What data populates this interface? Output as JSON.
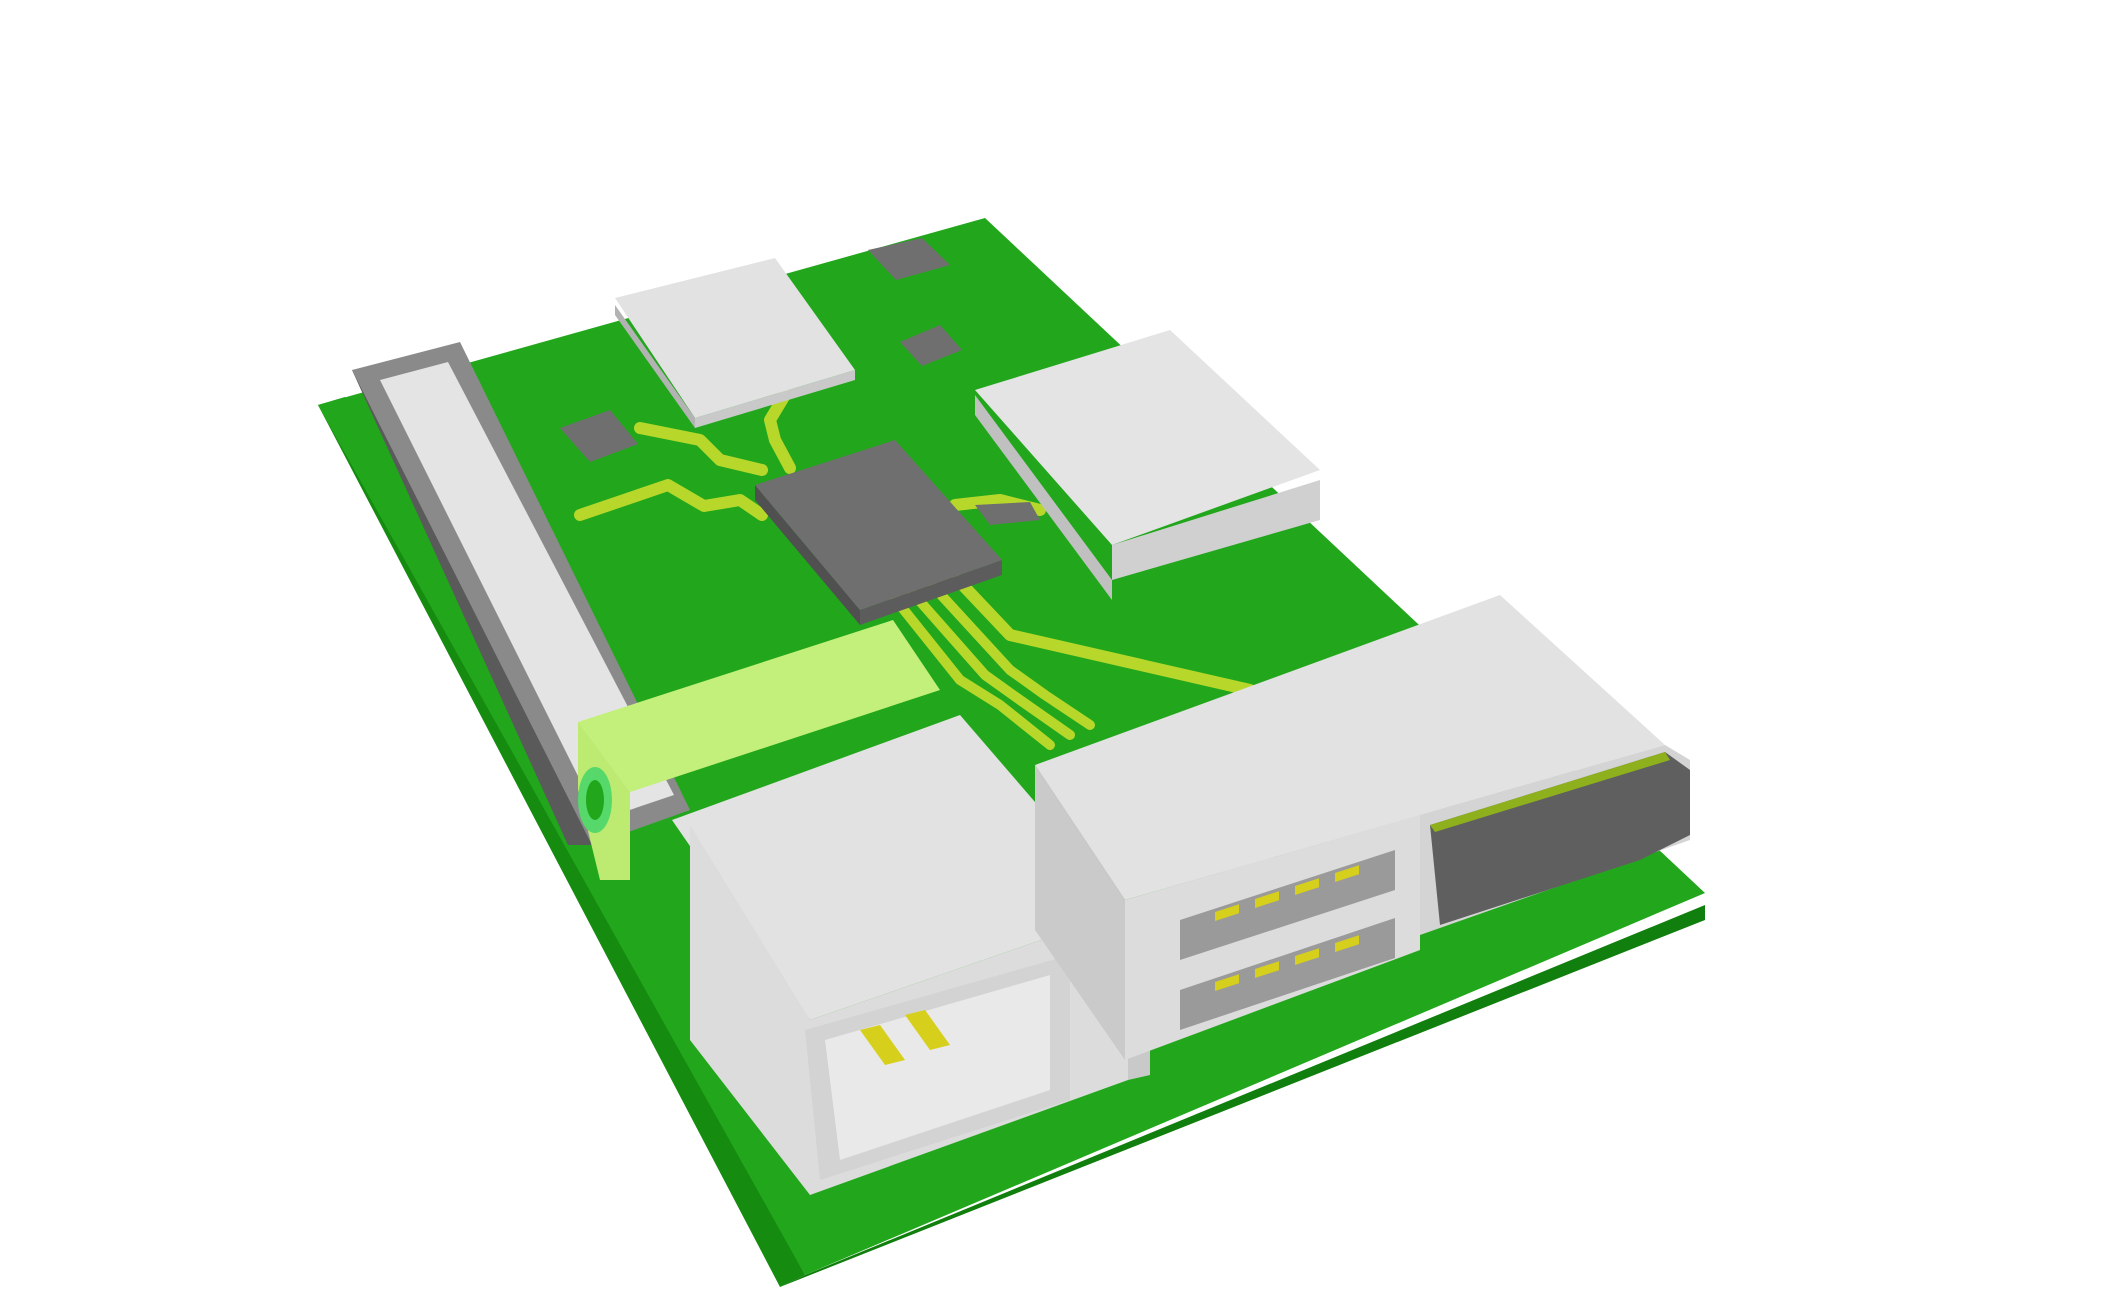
{
  "scene": {
    "subject": "circuit-board-render",
    "colors": {
      "background": "#ffffff",
      "board_top": "#22a71c",
      "board_side": "#158b10",
      "trace": "#b7d82b",
      "trace_dark": "#8fb01d",
      "chip_top": "#6f6f6f",
      "chip_side": "#505050",
      "component_light": "#e2e2e2",
      "component_light_side": "#c9c9c9",
      "component_shadow": "#b3b3b3",
      "highlight_green": "#c3f07a",
      "pin_gold": "#d6cf1c"
    },
    "components": [
      {
        "name": "main-processor-chip",
        "kind": "chip"
      },
      {
        "name": "memory-module",
        "kind": "module"
      },
      {
        "name": "power-module",
        "kind": "module"
      },
      {
        "name": "gpio-header-strip",
        "kind": "header"
      },
      {
        "name": "audio-jack",
        "kind": "connector"
      },
      {
        "name": "hdmi-port",
        "kind": "connector"
      },
      {
        "name": "usb-dual-stack",
        "kind": "connector"
      },
      {
        "name": "ethernet-port",
        "kind": "connector"
      },
      {
        "name": "small-ic",
        "kind": "chip",
        "count": 3
      }
    ]
  }
}
